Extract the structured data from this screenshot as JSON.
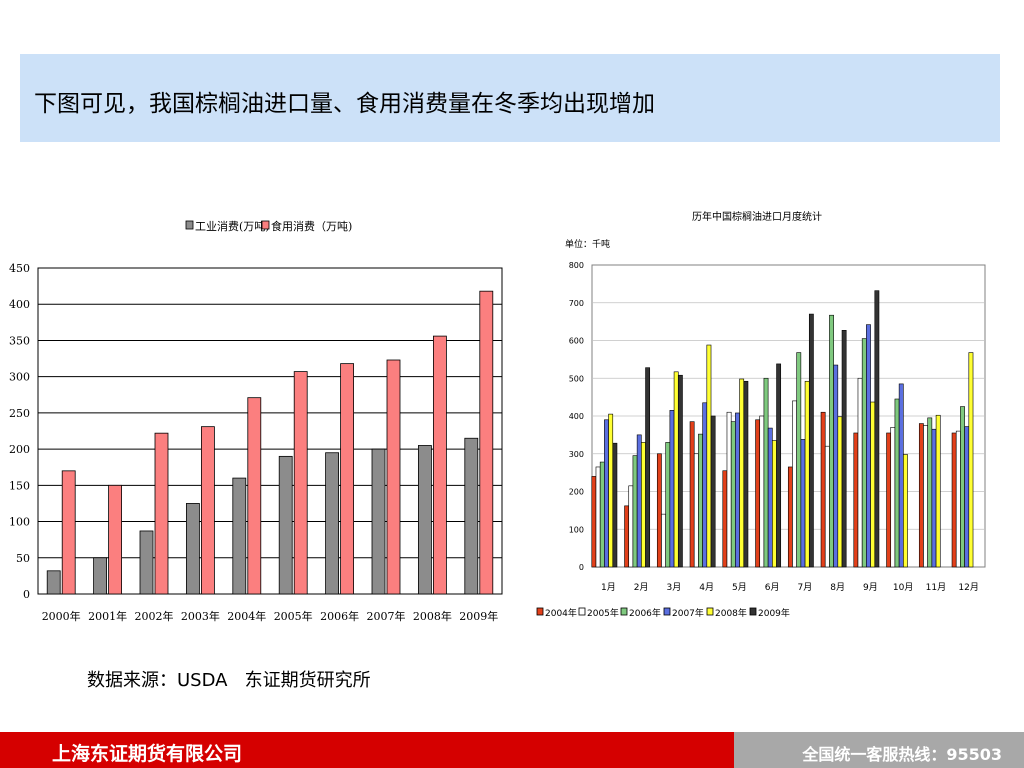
{
  "header": {
    "title": "下图可见，我国棕榈油进口量、食用消费量在冬季均出现增加"
  },
  "source": "数据来源：USDA   东证期货研究所",
  "footer": {
    "company": "上海东证期货有限公司",
    "hotline": "全国统一客服热线：95503"
  },
  "colors": {
    "header_bg": "#cce1f8",
    "footer_red": "#d50000",
    "footer_gray": "#a8a8a8"
  },
  "chart_data": [
    {
      "type": "bar",
      "title": "",
      "categories": [
        "2000年",
        "2001年",
        "2002年",
        "2003年",
        "2004年",
        "2005年",
        "2006年",
        "2007年",
        "2008年",
        "2009年"
      ],
      "series": [
        {
          "name": "工业消费(万吨)",
          "color": "#8c8c8c",
          "values": [
            32,
            50,
            87,
            125,
            160,
            190,
            195,
            200,
            205,
            215
          ]
        },
        {
          "name": "食用消费（万吨)",
          "color": "#fb7f7f",
          "values": [
            170,
            150,
            222,
            231,
            271,
            307,
            318,
            323,
            356,
            418
          ]
        }
      ],
      "ylim": [
        0,
        450
      ],
      "yticks": [
        0,
        50,
        100,
        150,
        200,
        250,
        300,
        350,
        400,
        450
      ],
      "grid": true,
      "legend": "top"
    },
    {
      "type": "bar",
      "title": "历年中国棕榈油进口月度统计",
      "ylabel": "单位：千吨",
      "categories": [
        "1月",
        "2月",
        "3月",
        "4月",
        "5月",
        "6月",
        "7月",
        "8月",
        "9月",
        "10月",
        "11月",
        "12月"
      ],
      "series": [
        {
          "name": "2004年",
          "color": "#e2401a",
          "values": [
            240,
            162,
            300,
            385,
            255,
            390,
            265,
            410,
            355,
            355,
            380,
            355
          ]
        },
        {
          "name": "2005年",
          "color": "#ffffff",
          "values": [
            265,
            215,
            140,
            300,
            410,
            400,
            440,
            320,
            500,
            370,
            375,
            360
          ]
        },
        {
          "name": "2006年",
          "color": "#7fc97f",
          "values": [
            278,
            295,
            330,
            352,
            385,
            500,
            568,
            667,
            605,
            445,
            395,
            425
          ]
        },
        {
          "name": "2007年",
          "color": "#5b6fe0",
          "values": [
            390,
            350,
            415,
            435,
            408,
            368,
            338,
            535,
            642,
            485,
            365,
            372
          ]
        },
        {
          "name": "2008年",
          "color": "#ffff33",
          "values": [
            405,
            330,
            517,
            588,
            498,
            335,
            492,
            398,
            437,
            298,
            402,
            568
          ]
        },
        {
          "name": "2009年",
          "color": "#333333",
          "values": [
            328,
            528,
            508,
            400,
            492,
            538,
            670,
            627,
            732,
            null,
            null,
            null
          ]
        }
      ],
      "ylim": [
        0,
        800
      ],
      "yticks": [
        0,
        100,
        200,
        300,
        400,
        500,
        600,
        700,
        800
      ],
      "grid": true,
      "legend": "bottom"
    }
  ]
}
